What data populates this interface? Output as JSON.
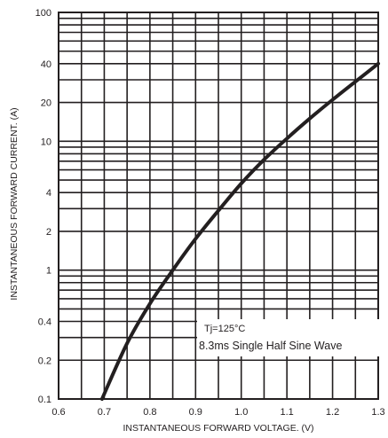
{
  "chart_data": {
    "type": "line",
    "xlabel": "INSTANTANEOUS FORWARD VOLTAGE. (V)",
    "ylabel": "INSTANTANEOUS FORWARD CURRENT. (A)",
    "xlim": [
      0.6,
      1.3
    ],
    "ylim": [
      0.1,
      100
    ],
    "yscale": "log",
    "grid": true,
    "x_ticks": [
      0.6,
      0.7,
      0.8,
      0.9,
      1.0,
      1.1,
      1.2,
      1.3
    ],
    "x_tick_labels": [
      "0.6",
      "0.7",
      "0.8",
      "0.9",
      "1.0",
      "1.1",
      "1.2",
      "1.3"
    ],
    "y_ticks": [
      0.1,
      0.2,
      0.4,
      1,
      2,
      4,
      10,
      20,
      40,
      100
    ],
    "y_tick_labels": [
      "0.1",
      "0.2",
      "0.4",
      "1",
      "2",
      "4",
      "10",
      "20",
      "40",
      "100"
    ],
    "annotations": [
      "Tj=125°C",
      "8.3ms Single Half Sine Wave"
    ],
    "series": [
      {
        "color": "#231f20",
        "x": [
          0.695,
          0.75,
          0.8,
          0.85,
          0.9,
          0.95,
          1.0,
          1.05,
          1.1,
          1.15,
          1.2,
          1.25,
          1.3
        ],
        "y": [
          0.1,
          0.27,
          0.55,
          1.0,
          1.75,
          2.9,
          4.7,
          7.2,
          10.5,
          15,
          21,
          29,
          40
        ]
      }
    ]
  }
}
